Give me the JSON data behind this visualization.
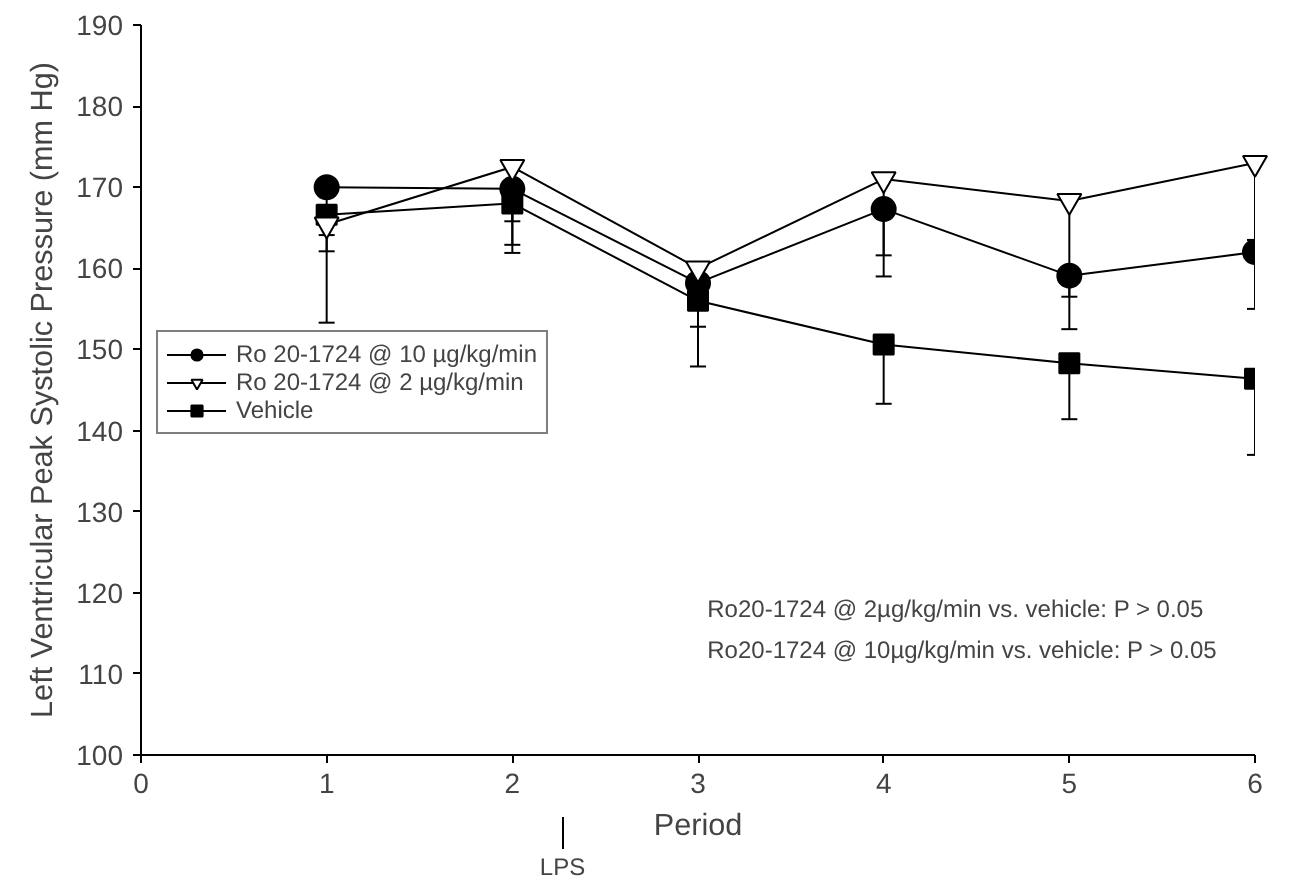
{
  "chart_data": {
    "type": "line",
    "xlabel": "Period",
    "ylabel": "Left Ventricular Peak Systolic Pressure (mm Hg)",
    "x": [
      1,
      2,
      3,
      4,
      5,
      6
    ],
    "series": [
      {
        "name": "Ro 20-1724 @ 10 µg/kg/min",
        "color": "#000000",
        "marker": "circle",
        "values": [
          170,
          169.8,
          158.2,
          167.3,
          159.1,
          162
        ],
        "errors": [
          [
            164.1,
            170
          ],
          [
            165.8,
            169.8
          ],
          [
            152.8,
            158.2
          ],
          [
            159,
            167.3
          ],
          [
            152.5,
            159.1
          ],
          [
            155,
            162
          ]
        ]
      },
      {
        "name": "Ro 20-1724 @ 2 µg/kg/min",
        "color": "#000000",
        "marker": "triangle",
        "values": [
          165.4,
          172.5,
          160,
          171,
          168.3,
          173
        ],
        "errors": [
          [
            153.3,
            165.4
          ],
          [
            162.9,
            172.5
          ],
          null,
          [
            161.6,
            171
          ],
          [
            156.5,
            168.3
          ],
          [
            163.5,
            173
          ]
        ]
      },
      {
        "name": "Vehicle",
        "color": "#000000",
        "marker": "square",
        "values": [
          166.6,
          168,
          156,
          150.6,
          148.3,
          146.4
        ],
        "errors": [
          [
            162.1,
            166.6
          ],
          [
            161.9,
            168
          ],
          [
            147.9,
            156
          ],
          [
            143.3,
            150.6
          ],
          [
            141.4,
            148.3
          ],
          [
            137,
            146.4
          ]
        ]
      }
    ],
    "xlim": [
      0,
      6
    ],
    "xticks": [
      0,
      1,
      2,
      3,
      4,
      5,
      6
    ],
    "ylim": [
      100,
      190
    ],
    "yticks": [
      100,
      110,
      120,
      130,
      140,
      150,
      160,
      170,
      180,
      190
    ],
    "grid": false,
    "legend": "left",
    "line_style": "solid",
    "annotations": [
      "Ro20-1724 @ 2µg/kg/min vs. vehicle: P > 0.05",
      "Ro20-1724 @ 10µg/kg/min vs. vehicle: P > 0.05",
      "LPS"
    ]
  }
}
